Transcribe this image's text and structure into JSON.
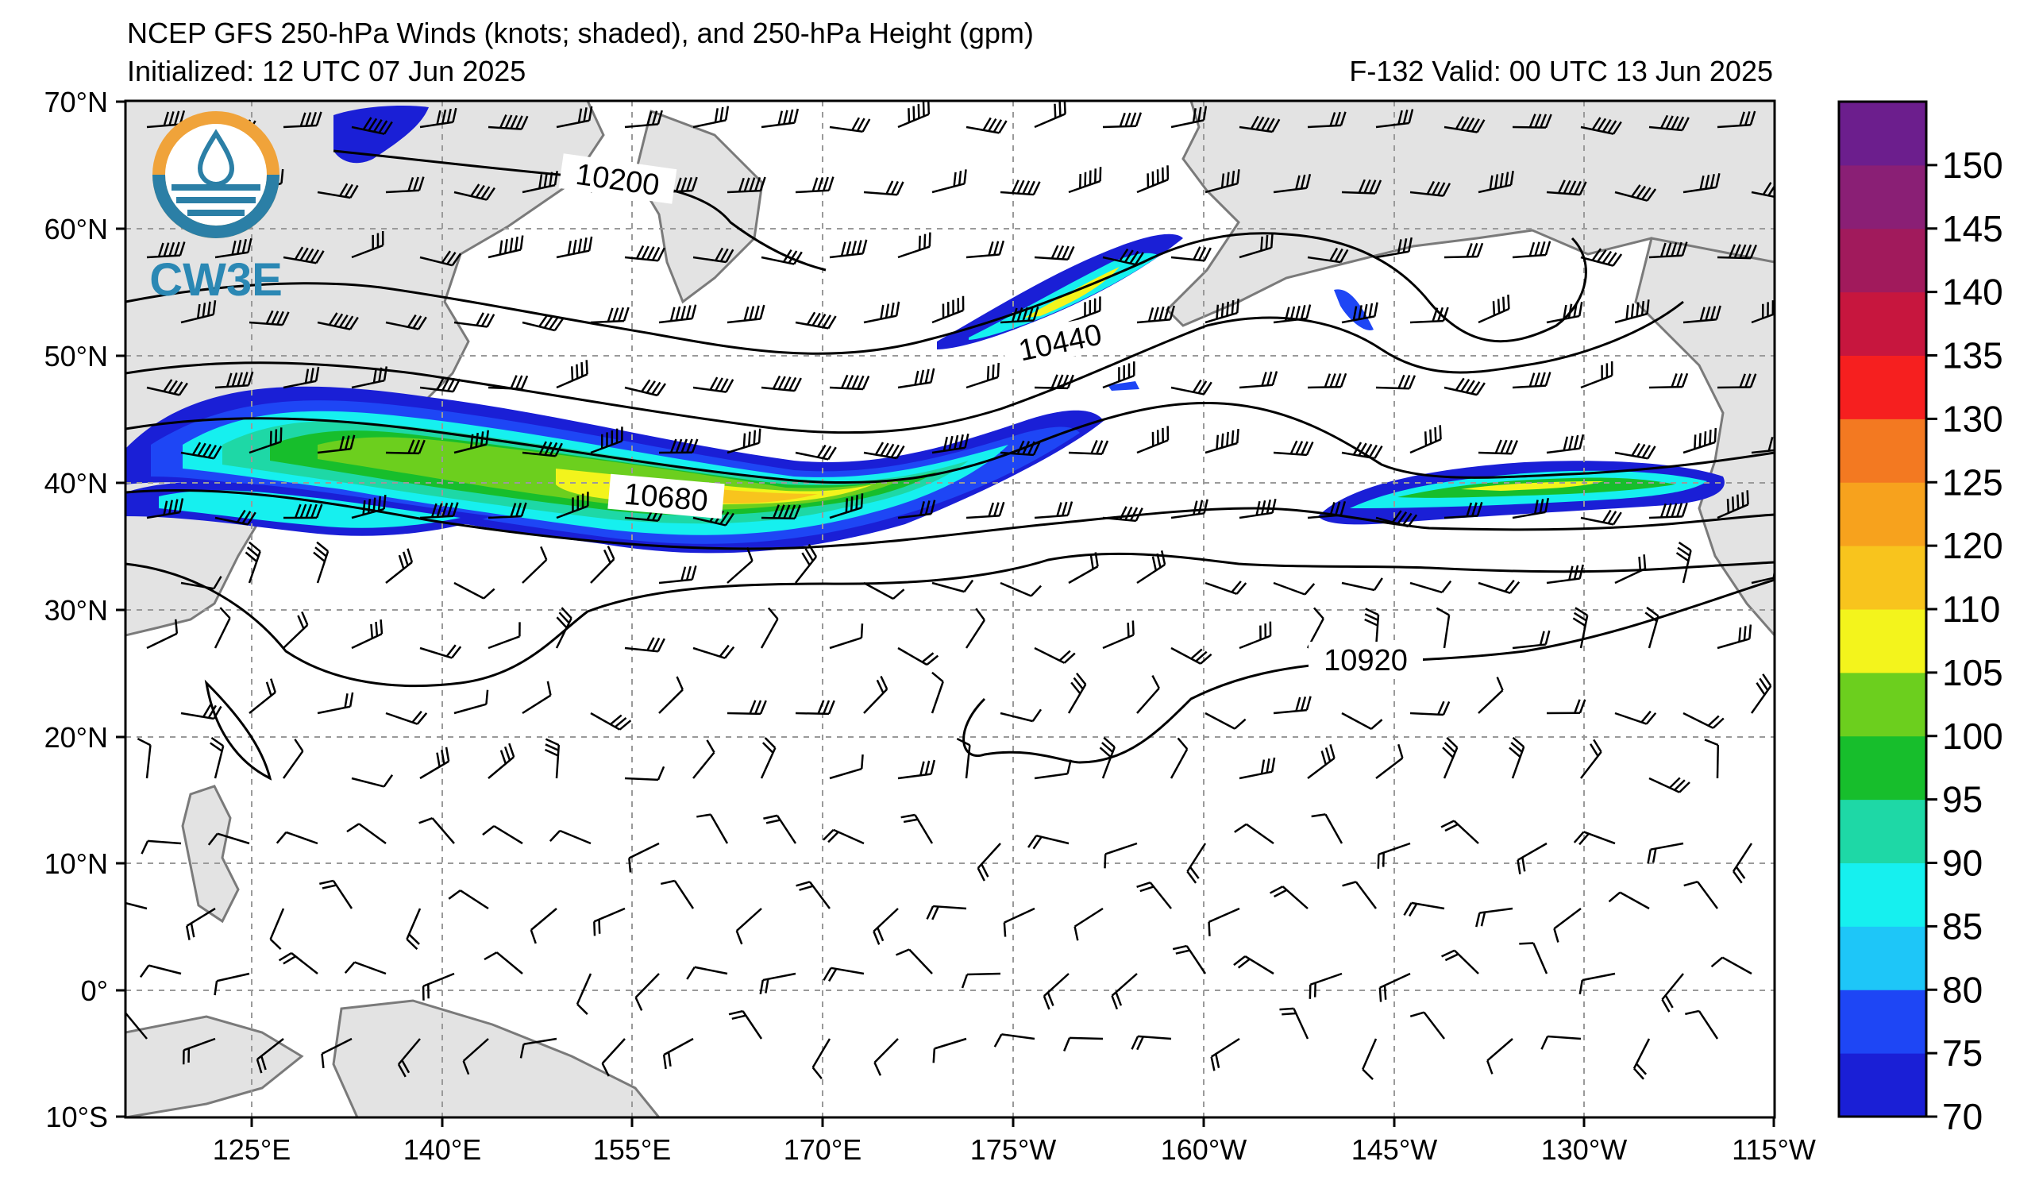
{
  "header": {
    "title": "NCEP GFS 250-hPa Winds (knots; shaded), and 250-hPa Height (gpm)",
    "initialized": "Initialized: 12 UTC 07 Jun 2025",
    "valid": "F-132  Valid: 00 UTC 13 Jun 2025"
  },
  "logo": {
    "text": "CW3E"
  },
  "map": {
    "lat_labels": [
      "70°N",
      "60°N",
      "50°N",
      "40°N",
      "30°N",
      "20°N",
      "10°N",
      "0°",
      "10°S"
    ],
    "lon_labels": [
      "125°E",
      "140°E",
      "155°E",
      "170°E",
      "175°W",
      "160°W",
      "145°W",
      "130°W",
      "115°W"
    ],
    "contour_labels": [
      "10200",
      "10440",
      "10680",
      "10920"
    ]
  },
  "colorbar": {
    "units": "knots",
    "colors": [
      "#1a1fd6",
      "#1e46f5",
      "#1ec6f8",
      "#16f0ef",
      "#1ed8a6",
      "#17be2c",
      "#6ccf1e",
      "#f3f41c",
      "#f8c41d",
      "#f7a21d",
      "#f37921",
      "#f61f1f",
      "#c7163e",
      "#a11a5c",
      "#8a1f75",
      "#6c1e8d"
    ],
    "tick_labels": [
      "70",
      "75",
      "80",
      "85",
      "90",
      "95",
      "100",
      "105",
      "110",
      "120",
      "125",
      "130",
      "135",
      "140",
      "145",
      "150"
    ]
  }
}
